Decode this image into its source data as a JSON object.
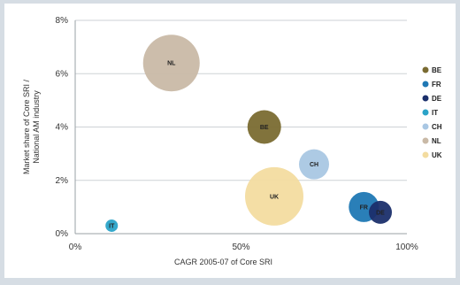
{
  "chart_data": {
    "type": "bubble",
    "title": "",
    "xlabel": "CAGR 2005-07 of Core SRI",
    "ylabel_lines": [
      "Market share of Core SRI /",
      "National AM industry"
    ],
    "xlim": [
      0,
      100
    ],
    "ylim": [
      0,
      8
    ],
    "x_ticks": [
      0,
      50,
      100
    ],
    "x_tick_labels": [
      "0%",
      "50%",
      "100%"
    ],
    "y_ticks": [
      0,
      2,
      4,
      6,
      8
    ],
    "y_tick_labels": [
      "0%",
      "2%",
      "4%",
      "6%",
      "8%"
    ],
    "legend_position": "right",
    "series": [
      {
        "name": "BE",
        "x": 57,
        "y": 4.0,
        "size": 19,
        "color": "#7a6b32"
      },
      {
        "name": "FR",
        "x": 87,
        "y": 1.0,
        "size": 17,
        "color": "#1f78b4"
      },
      {
        "name": "DE",
        "x": 92,
        "y": 0.8,
        "size": 13,
        "color": "#1b2f6b"
      },
      {
        "name": "IT",
        "x": 11,
        "y": 0.3,
        "size": 7,
        "color": "#2aa3c8"
      },
      {
        "name": "CH",
        "x": 72,
        "y": 2.6,
        "size": 17,
        "color": "#a9c7e3"
      },
      {
        "name": "NL",
        "x": 29,
        "y": 6.4,
        "size": 32,
        "color": "#c9b9a6"
      },
      {
        "name": "UK",
        "x": 60,
        "y": 1.4,
        "size": 33,
        "color": "#f3dca0"
      }
    ]
  }
}
